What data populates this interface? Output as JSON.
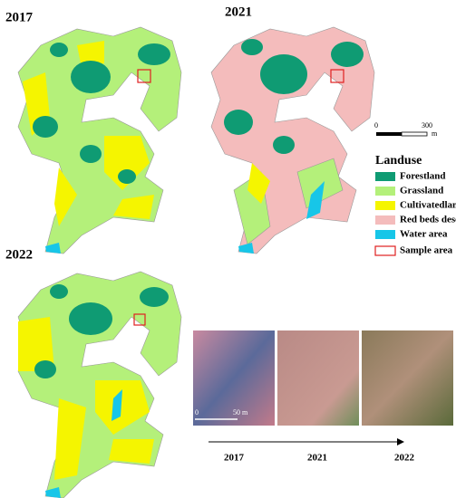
{
  "maps": [
    {
      "year": "2017"
    },
    {
      "year": "2021"
    },
    {
      "year": "2022"
    }
  ],
  "scale_bar": {
    "start": "0",
    "end": "300",
    "unit": "m"
  },
  "legend": {
    "title": "Landuse",
    "items": [
      {
        "label": "Forestland",
        "color": "#0f9b73"
      },
      {
        "label": "Grassland",
        "color": "#b4f07a"
      },
      {
        "label": "Cultivatedland",
        "color": "#f5f500"
      },
      {
        "label": "Red beds desert",
        "color": "#f4bcbc"
      },
      {
        "label": "Water area",
        "color": "#17c6e8"
      }
    ],
    "sample": {
      "label": "Sample area",
      "color": "#e02020"
    }
  },
  "photos": {
    "scale_start": "0",
    "scale_end": "50 m"
  },
  "timeline": [
    "2017",
    "2021",
    "2022"
  ]
}
